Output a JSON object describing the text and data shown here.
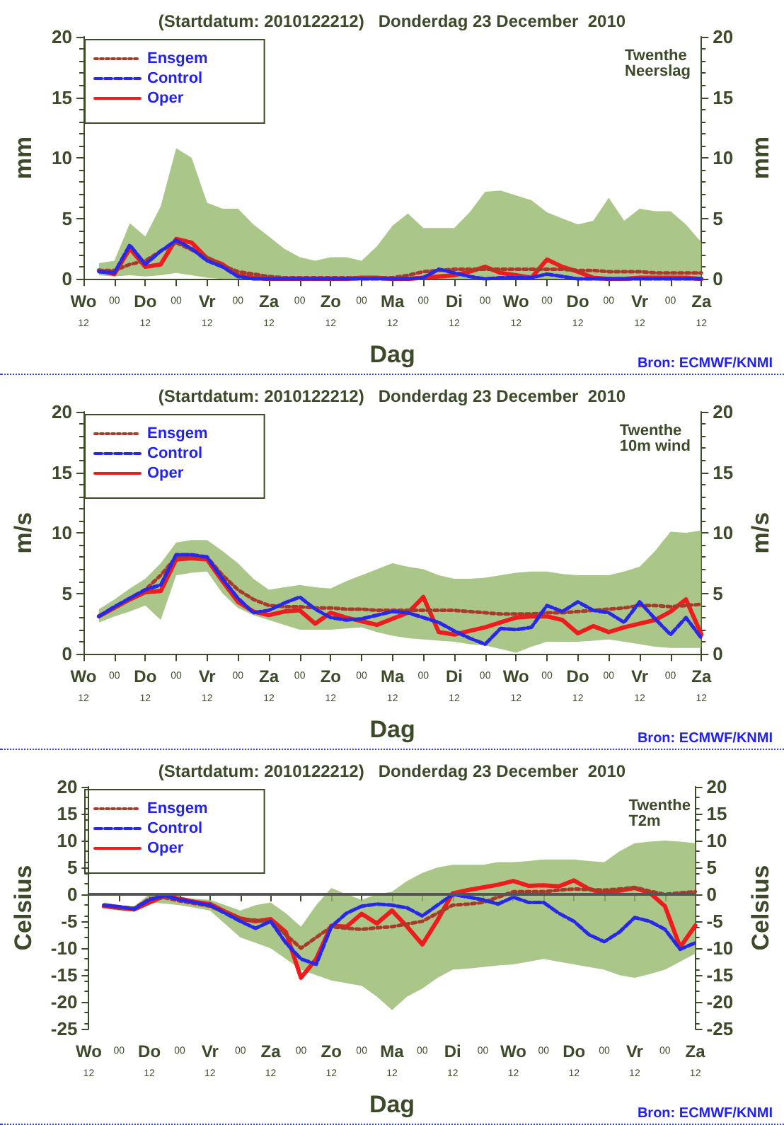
{
  "chart_data": [
    {
      "type": "line",
      "title": "(Startdatum: 2010122212)   Donderdag 23 December  2010",
      "xlabel": "Dag",
      "ylabel": "mm",
      "y2label": "mm",
      "annotations": [
        "Twenthe\nNeerslag",
        "Bron: ECMWF/KNMI"
      ],
      "legend": "top left",
      "grid": false,
      "marker": "none",
      "categories": [
        "Wo\n12",
        null,
        "00",
        null,
        "Do\n12",
        null,
        "00",
        null,
        "Vr\n12",
        null,
        "00",
        null,
        "Za\n12",
        null,
        "00",
        null,
        "Zo\n12",
        null,
        "00",
        null,
        "Ma\n12",
        null,
        "00",
        null,
        "Di\n12",
        null,
        "00",
        null,
        "Wo\n12",
        null,
        "00",
        null,
        "Do\n12",
        null,
        "00",
        null,
        "Vr\n12",
        null,
        "00",
        null,
        "Za\n12"
      ],
      "ylim": [
        0,
        20
      ],
      "yticks": [
        0,
        5,
        10,
        15,
        20
      ],
      "y2lim": [
        0,
        20
      ],
      "y2ticks": [
        0,
        5,
        10,
        15,
        20
      ],
      "series": [
        {
          "name": "Ensgem",
          "color": "#a83a2a",
          "line_style": "dotted",
          "values": [
            null,
            0.7,
            0.7,
            1.2,
            1.5,
            2.3,
            3,
            2.4,
            1.8,
            1.1,
            0.6,
            0.4,
            0.2,
            0.1,
            0.1,
            0.1,
            0.1,
            0.1,
            0.1,
            0.1,
            0.1,
            0.3,
            0.6,
            0.7,
            0.8,
            0.8,
            0.8,
            0.8,
            0.8,
            0.8,
            0.8,
            0.8,
            0.7,
            0.7,
            0.6,
            0.6,
            0.6,
            0.5,
            0.5,
            0.5,
            0.5
          ],
          "lower": [
            null,
            0.3,
            0.2,
            0.3,
            0.2,
            0.3,
            0.5,
            0.3,
            0.1,
            0,
            0,
            0,
            0,
            0,
            0,
            0,
            0,
            0,
            0,
            0,
            0,
            0,
            0,
            0,
            0,
            0,
            0,
            0,
            0,
            0,
            0,
            0,
            0,
            0,
            0,
            0,
            0,
            0,
            0,
            0,
            0
          ],
          "upper": [
            null,
            1.3,
            1.5,
            4.6,
            3.5,
            6,
            10.8,
            10,
            6.3,
            5.8,
            5.8,
            4.5,
            3.5,
            2.5,
            1.8,
            1.5,
            1.8,
            1.8,
            1.5,
            2.7,
            4.4,
            5.4,
            4.2,
            4.2,
            4.2,
            5.5,
            7.2,
            7.3,
            6.9,
            6.5,
            5.5,
            5.0,
            4.5,
            4.8,
            6.7,
            4.8,
            5.8,
            5.6,
            5.6,
            4.5,
            3
          ]
        },
        {
          "name": "Control",
          "color": "#2828e8",
          "line_style": "dashed",
          "values": [
            null,
            0.6,
            0.5,
            2.8,
            1.2,
            2.3,
            3.2,
            2.5,
            1.5,
            1.0,
            0.2,
            0,
            0,
            0,
            0,
            0,
            0,
            0,
            0,
            0,
            0,
            0,
            0.1,
            0.8,
            0.5,
            0.2,
            0,
            0.1,
            0.1,
            0.1,
            0.4,
            0.2,
            0,
            0,
            0,
            0,
            0,
            0,
            0,
            0,
            0
          ]
        },
        {
          "name": "Oper",
          "color": "#ee1c1c",
          "line_style": "solid",
          "values": [
            null,
            0.7,
            0.4,
            2.5,
            1.0,
            1.2,
            3.3,
            3.0,
            1.7,
            1.2,
            0.3,
            0.1,
            0,
            0,
            0,
            0,
            0,
            0,
            0.1,
            0.1,
            0,
            0,
            0.1,
            0.2,
            0.3,
            0.6,
            1.0,
            0.5,
            0.3,
            0.1,
            1.6,
            1.0,
            0.6,
            0.1,
            0,
            0,
            0.1,
            0.1,
            0.1,
            0.1,
            0
          ]
        }
      ]
    },
    {
      "type": "line",
      "title": "(Startdatum: 2010122212)   Donderdag 23 December  2010",
      "xlabel": "Dag",
      "ylabel": "m/s",
      "y2label": "m/s",
      "annotations": [
        "Twenthe\n10m wind",
        "Bron: ECMWF/KNMI"
      ],
      "legend": "top left",
      "grid": false,
      "marker": "none",
      "categories": [
        "Wo\n12",
        null,
        "00",
        null,
        "Do\n12",
        null,
        "00",
        null,
        "Vr\n12",
        null,
        "00",
        null,
        "Za\n12",
        null,
        "00",
        null,
        "Zo\n12",
        null,
        "00",
        null,
        "Ma\n12",
        null,
        "00",
        null,
        "Di\n12",
        null,
        "00",
        null,
        "Wo\n12",
        null,
        "00",
        null,
        "Do\n12",
        null,
        "00",
        null,
        "Vr\n12",
        null,
        "00",
        null,
        "Za\n12"
      ],
      "ylim": [
        0,
        20
      ],
      "yticks": [
        0,
        5,
        10,
        15,
        20
      ],
      "y2lim": [
        0,
        20
      ],
      "y2ticks": [
        0,
        5,
        10,
        15,
        20
      ],
      "series": [
        {
          "name": "Ensgem",
          "color": "#a83a2a",
          "line_style": "dotted",
          "values": [
            null,
            3.1,
            3.8,
            4.6,
            5.3,
            6.5,
            8.0,
            8.1,
            8.0,
            6.5,
            5.3,
            4.5,
            4.0,
            3.9,
            3.9,
            3.8,
            3.8,
            3.7,
            3.7,
            3.6,
            3.6,
            3.6,
            3.6,
            3.6,
            3.6,
            3.5,
            3.4,
            3.3,
            3.3,
            3.3,
            3.4,
            3.4,
            3.5,
            3.6,
            3.7,
            3.8,
            4.0,
            4.0,
            3.9,
            4.0,
            4.1
          ],
          "lower": [
            null,
            2.6,
            3.1,
            3.5,
            4.0,
            2.8,
            6.5,
            6.7,
            6.8,
            5.0,
            3.8,
            3.2,
            2.8,
            2.4,
            2.0,
            2.0,
            2.0,
            2.1,
            2.2,
            1.8,
            1.5,
            1.3,
            1.2,
            1.1,
            1.0,
            0.8,
            0.7,
            0.4,
            0.1,
            0.6,
            1.0,
            1.0,
            1.0,
            1.1,
            1.2,
            1.0,
            0.8,
            0.6,
            0.5,
            0.5,
            0.5
          ],
          "upper": [
            null,
            3.7,
            4.5,
            5.4,
            6.2,
            7.5,
            9.2,
            9.4,
            9.4,
            8.5,
            7.5,
            6.2,
            5.3,
            5.5,
            5.7,
            5.5,
            5.4,
            6.0,
            6.5,
            7.0,
            7.5,
            7.2,
            7.0,
            6.5,
            6.2,
            6.2,
            6.3,
            6.5,
            6.7,
            6.8,
            6.8,
            6.6,
            6.5,
            6.5,
            6.5,
            6.8,
            7.2,
            8.5,
            10.1,
            10.0,
            10.2
          ]
        },
        {
          "name": "Control",
          "color": "#2828e8",
          "line_style": "dashed",
          "values": [
            null,
            3.1,
            3.9,
            4.6,
            5.3,
            5.7,
            8.2,
            8.2,
            8.0,
            6.2,
            4.6,
            3.4,
            3.6,
            4.2,
            4.7,
            3.7,
            3.0,
            2.8,
            2.9,
            3.2,
            3.5,
            3.4,
            3.0,
            2.6,
            1.9,
            1.3,
            0.8,
            2.1,
            2.0,
            2.2,
            4.0,
            3.5,
            4.3,
            3.6,
            3.4,
            2.6,
            4.3,
            2.9,
            1.6,
            3.0,
            1.3
          ]
        },
        {
          "name": "Oper",
          "color": "#ee1c1c",
          "line_style": "solid",
          "values": [
            null,
            3.1,
            3.8,
            4.5,
            5.1,
            5.2,
            7.8,
            7.9,
            7.8,
            6.0,
            4.3,
            3.5,
            3.2,
            3.5,
            3.6,
            2.5,
            3.4,
            3.0,
            2.7,
            2.4,
            2.9,
            3.4,
            4.7,
            1.8,
            1.6,
            1.9,
            2.2,
            2.6,
            3.0,
            3.1,
            3.1,
            2.8,
            1.7,
            2.3,
            1.8,
            2.2,
            2.5,
            2.8,
            3.5,
            4.5,
            1.6
          ]
        }
      ]
    },
    {
      "type": "line",
      "title": "(Startdatum: 2010122212)   Donderdag 23 December  2010",
      "xlabel": "Dag",
      "ylabel": "Celsius",
      "y2label": "Celsius",
      "annotations": [
        "Twenthe\nT2m",
        "Bron: ECMWF/KNMI"
      ],
      "legend": "top left",
      "grid": false,
      "marker": "none",
      "categories": [
        "Wo\n12",
        null,
        "00",
        null,
        "Do\n12",
        null,
        "00",
        null,
        "Vr\n12",
        null,
        "00",
        null,
        "Za\n12",
        null,
        "00",
        null,
        "Zo\n12",
        null,
        "00",
        null,
        "Ma\n12",
        null,
        "00",
        null,
        "Di\n12",
        null,
        "00",
        null,
        "Wo\n12",
        null,
        "00",
        null,
        "Do\n12",
        null,
        "00",
        null,
        "Vr\n12",
        null,
        "00",
        null,
        "Za\n12"
      ],
      "ylim": [
        -25,
        20
      ],
      "yticks": [
        -25,
        -20,
        -15,
        -10,
        -5,
        0,
        5,
        10,
        15,
        20
      ],
      "y2lim": [
        -25,
        20
      ],
      "y2ticks": [
        -25,
        -20,
        -15,
        -10,
        -5,
        0,
        5,
        10,
        15,
        20
      ],
      "ref_lines": [
        {
          "axis": "y",
          "value": 0,
          "color": "#555555"
        }
      ],
      "series": [
        {
          "name": "Ensgem",
          "color": "#a83a2a",
          "line_style": "dotted",
          "values": [
            null,
            -2,
            -2.3,
            -2.6,
            -0.8,
            -0.6,
            -1.2,
            -1.7,
            -2.2,
            -3.4,
            -4.6,
            -4.8,
            -5.0,
            -7.5,
            -10,
            -8,
            -6,
            -6.3,
            -6.5,
            -6.2,
            -6,
            -5.5,
            -5,
            -3.5,
            -2,
            -1.8,
            -1.5,
            -0.5,
            0.5,
            0.5,
            0.5,
            0.8,
            1,
            0.9,
            0.8,
            1.0,
            1.3,
            0.6,
            0,
            0.3,
            0.5
          ],
          "lower": [
            null,
            -2.5,
            -3,
            -3.2,
            -1.5,
            -1.7,
            -2,
            -2.5,
            -3,
            -5.5,
            -8,
            -9,
            -10,
            -12,
            -14,
            -15,
            -16,
            -16.5,
            -17,
            -19,
            -21.5,
            -19,
            -17.5,
            -15.5,
            -14,
            -13.8,
            -13.5,
            -13.2,
            -13,
            -12.5,
            -12,
            -12.5,
            -13,
            -13.5,
            -14,
            -15,
            -15.5,
            -14.8,
            -14,
            -12.5,
            -11
          ],
          "upper": [
            null,
            -1.5,
            -2.0,
            -2.2,
            0,
            -0.2,
            -0.5,
            -0.8,
            -1.0,
            -2.0,
            -3.0,
            -2.0,
            -1.5,
            -3.5,
            -6,
            -2,
            1.2,
            0,
            -1,
            0,
            0.5,
            2.5,
            4,
            5,
            5.5,
            5.5,
            5.5,
            6,
            6,
            6.2,
            6.5,
            6.5,
            6.5,
            6.2,
            6,
            8,
            9.5,
            9.8,
            10,
            9.8,
            9.5
          ]
        },
        {
          "name": "Control",
          "color": "#2828e8",
          "line_style": "dashed",
          "values": [
            null,
            -2.0,
            -2.3,
            -2.7,
            -1.0,
            -0.2,
            -1.0,
            -1.5,
            -2.0,
            -3.5,
            -5.0,
            -6.3,
            -5.0,
            -9.0,
            -12,
            -13,
            -6,
            -3.5,
            -2.2,
            -1.8,
            -2.0,
            -2.5,
            -4.0,
            -2.0,
            0.0,
            -0.5,
            -1.0,
            -1.8,
            -0.5,
            -1.5,
            -1.5,
            -3.5,
            -5.0,
            -7.5,
            -8.8,
            -7.0,
            -4.3,
            -5.0,
            -6.5,
            -10.2,
            -9.0
          ]
        },
        {
          "name": "Oper",
          "color": "#ee1c1c",
          "line_style": "solid",
          "values": [
            null,
            -2.2,
            -2.5,
            -2.8,
            -1.5,
            -0.3,
            -0.8,
            -1.4,
            -1.8,
            -3.2,
            -4.5,
            -5.0,
            -4.6,
            -7.0,
            -15.5,
            -12,
            -5.8,
            -6.0,
            -3.6,
            -5.4,
            -3.0,
            -6,
            -9.3,
            -4.8,
            0.2,
            0.8,
            1.3,
            1.8,
            2.5,
            1.6,
            1.7,
            1.5,
            2.6,
            1.0,
            0.2,
            0.7,
            1.2,
            0.3,
            -2.2,
            -9.8,
            -5.8
          ]
        }
      ]
    }
  ]
}
